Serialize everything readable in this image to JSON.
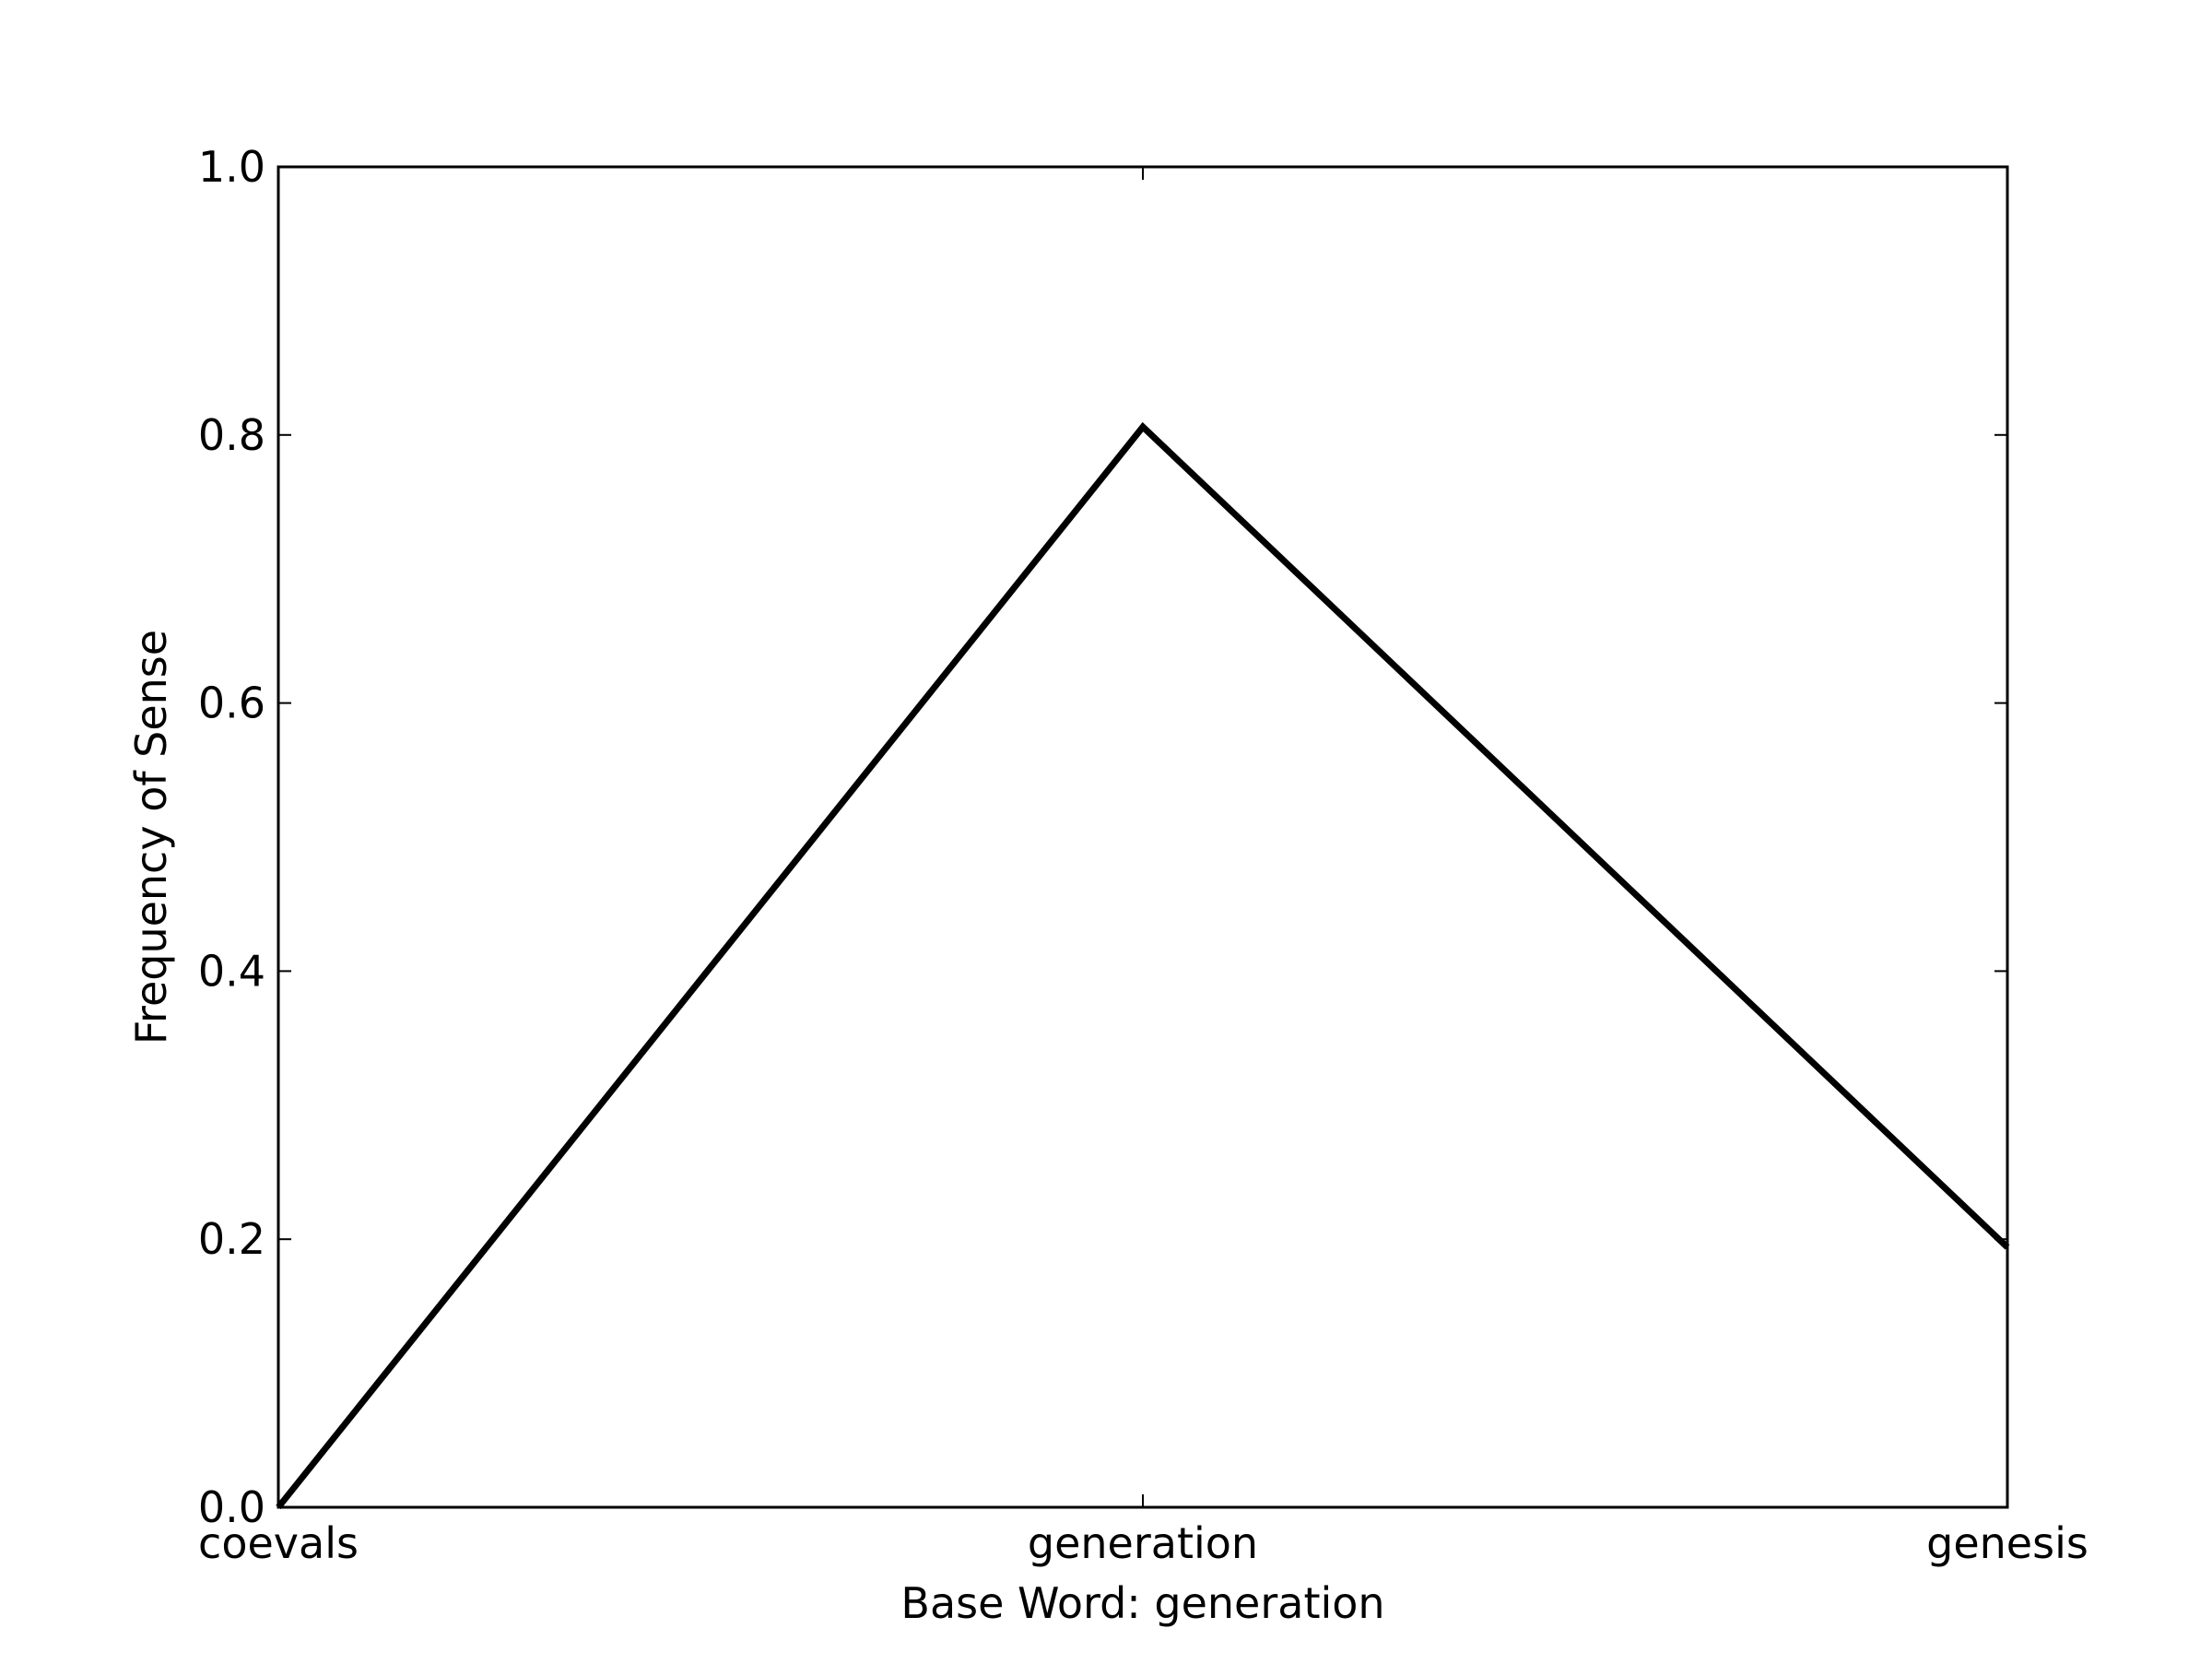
{
  "chart_data": {
    "type": "line",
    "title": "",
    "xlabel": "Base Word: generation",
    "ylabel": "Frequency of Sense",
    "categories": [
      "coevals",
      "generation",
      "genesis"
    ],
    "series": [
      {
        "values": [
          0.0,
          0.806,
          0.194
        ]
      }
    ],
    "ylim": [
      0.0,
      1.0
    ],
    "yticks": [
      "0.0",
      "0.2",
      "0.4",
      "0.6",
      "0.8",
      "1.0"
    ],
    "grid": false,
    "legend": "none",
    "line_color": "#000000"
  }
}
